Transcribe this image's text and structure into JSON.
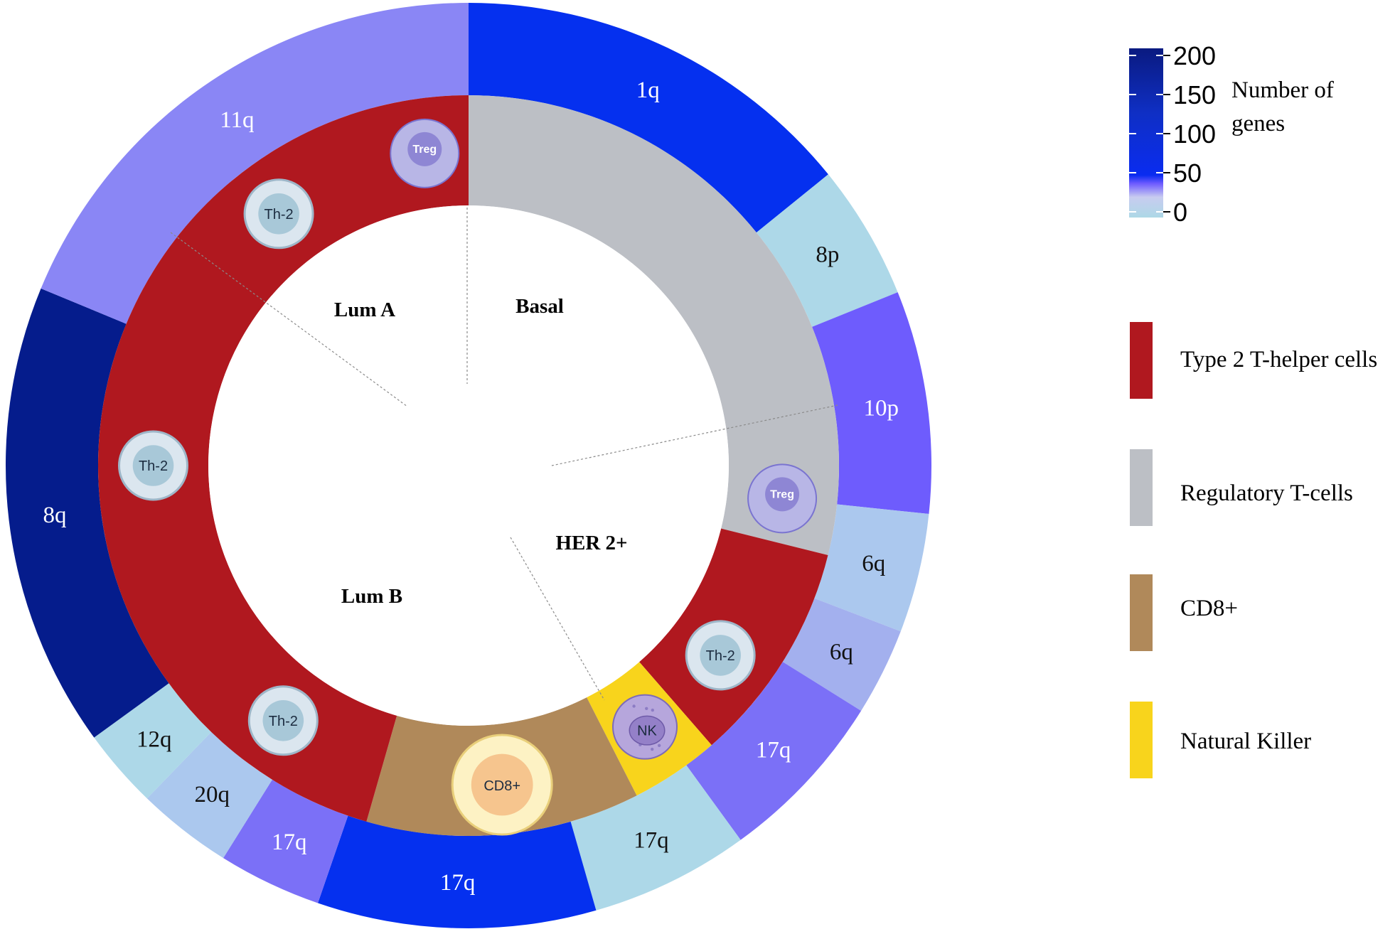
{
  "diagram": {
    "subtypes": [
      {
        "label": "Lum A",
        "start": 292.5,
        "end": 360,
        "cell_type": "th2"
      },
      {
        "label": "Basal",
        "start": 0,
        "end": 104,
        "cell_type": "treg"
      },
      {
        "label": "HER 2+",
        "start": 104,
        "end": 153,
        "cell_type": "th2"
      },
      {
        "label": "Lum B",
        "start": 196,
        "end": 292.5,
        "cell_type": "th2"
      }
    ],
    "inner_segments": [
      {
        "start": 0,
        "end": 104,
        "cell_type": "treg"
      },
      {
        "start": 104,
        "end": 139,
        "cell_type": "th2"
      },
      {
        "start": 139,
        "end": 153,
        "cell_type": "nk"
      },
      {
        "start": 153,
        "end": 196,
        "cell_type": "cd8"
      },
      {
        "start": 196,
        "end": 360,
        "cell_type": "th2"
      }
    ],
    "outer_segments": [
      {
        "label": "1q",
        "start": 0,
        "end": 51,
        "genes": 60
      },
      {
        "label": "8p",
        "start": 51,
        "end": 68,
        "genes": 3
      },
      {
        "label": "10p",
        "start": 68,
        "end": 96,
        "genes": 35
      },
      {
        "label": "6q",
        "start": 96,
        "end": 111,
        "genes": 8
      },
      {
        "label": "6q",
        "start": 111,
        "end": 122,
        "genes": 18
      },
      {
        "label": "17q",
        "start": 122,
        "end": 144,
        "genes": 30
      },
      {
        "label": "17q",
        "start": 144,
        "end": 164,
        "genes": 3
      },
      {
        "label": "17q",
        "start": 164,
        "end": 199,
        "genes": 60
      },
      {
        "label": "17q",
        "start": 199,
        "end": 212,
        "genes": 30
      },
      {
        "label": "20q",
        "start": 212,
        "end": 224,
        "genes": 8
      },
      {
        "label": "12q",
        "start": 224,
        "end": 234,
        "genes": 3
      },
      {
        "label": "8q",
        "start": 234,
        "end": 292.5,
        "genes": 200
      },
      {
        "label": "11q",
        "start": 292.5,
        "end": 360,
        "genes": 25
      }
    ],
    "cells": [
      {
        "type": "treg",
        "label": "Treg",
        "angle": 352
      },
      {
        "type": "treg",
        "label": "Treg",
        "angle": 96
      },
      {
        "type": "th2",
        "label": "Th-2",
        "angle": 323
      },
      {
        "type": "th2",
        "label": "Th-2",
        "angle": 270
      },
      {
        "type": "th2",
        "label": "Th-2",
        "angle": 127
      },
      {
        "type": "th2",
        "label": "Th-2",
        "angle": 216
      },
      {
        "type": "nk",
        "label": "NK",
        "angle": 146
      },
      {
        "type": "cd8",
        "label": "CD8+",
        "angle": 174
      }
    ]
  },
  "colorbar": {
    "title_line1": "Number of",
    "title_line2": "genes",
    "ticks": [
      "200",
      "150",
      "100",
      "50",
      "0"
    ],
    "min": 0,
    "max": 200
  },
  "legend": {
    "items": [
      {
        "label": "Type 2 T-helper cells",
        "color": "#b0181f"
      },
      {
        "label": "Regulatory T-cells",
        "color": "#bcbfc5"
      },
      {
        "label": "CD8+",
        "color": "#b0895a"
      },
      {
        "label": "Natural Killer",
        "color": "#f8d41c"
      }
    ]
  },
  "colors": {
    "th2": "#b0181f",
    "treg": "#bcbfc5",
    "cd8": "#b0895a",
    "nk": "#f8d41c"
  }
}
